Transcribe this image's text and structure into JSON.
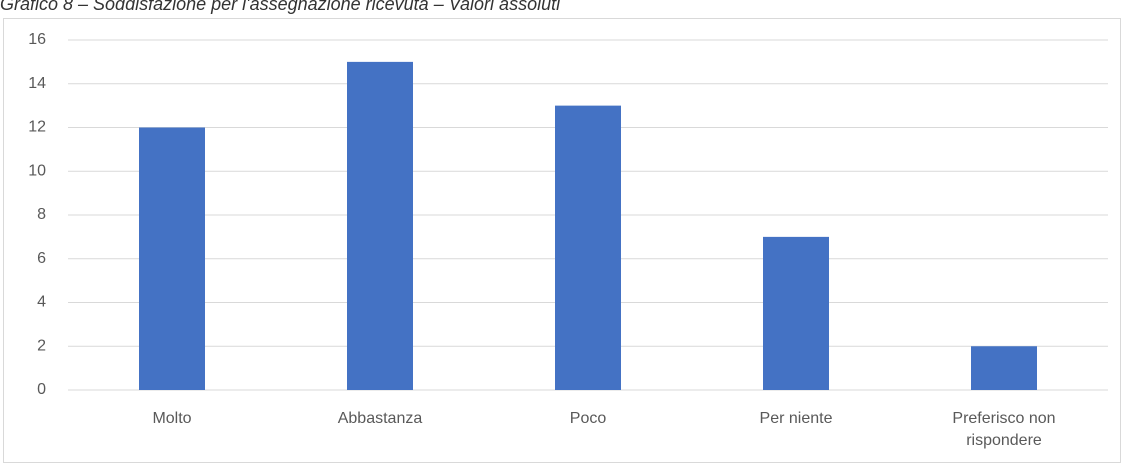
{
  "chart_data": {
    "type": "bar",
    "title": "Grafico 8 – Soddisfazione per l'assegnazione ricevuta – Valori assoluti",
    "categories": [
      "Molto",
      "Abbastanza",
      "Poco",
      "Per niente",
      "Preferisco non rispondere"
    ],
    "values": [
      12,
      15,
      13,
      7,
      2
    ],
    "color": "#4472c4",
    "ylim": [
      0,
      16
    ],
    "yticks": [
      0,
      2,
      4,
      6,
      8,
      10,
      12,
      14,
      16
    ],
    "grid": true
  }
}
